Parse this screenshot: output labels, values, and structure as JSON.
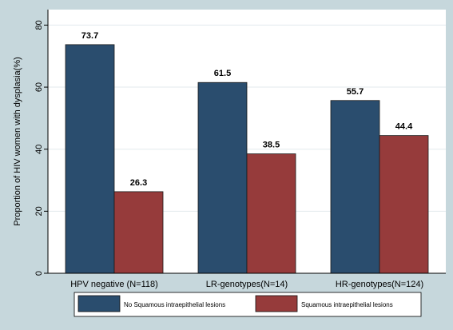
{
  "chart_data": {
    "type": "bar",
    "categories": [
      "HPV negative (N=118)",
      "LR-genotypes(N=14)",
      "HR-genotypes(N=124)"
    ],
    "series": [
      {
        "name": "No Squamous intraepithelial lesions",
        "values": [
          73.7,
          61.5,
          55.7
        ],
        "color": "#2a4d6e"
      },
      {
        "name": "Squamous intraepithelial lesions",
        "values": [
          26.3,
          38.5,
          44.4
        ],
        "color": "#963b3b"
      }
    ],
    "data_labels": [
      [
        "73.7",
        "61.5",
        "55.7"
      ],
      [
        "26.3",
        "38.5",
        "44.4"
      ]
    ],
    "ylabel": "Proportion of HIV women with dysplasia(%)",
    "xlabel": "",
    "yticks": [
      0,
      20,
      40,
      60,
      80
    ],
    "ylim": [
      0,
      85
    ],
    "grid": true,
    "legend_position": "bottom"
  },
  "colors": {
    "page_background": "#c6d7dc",
    "plot_background": "#ffffff",
    "grid": "#e3eaed",
    "axis": "#000000"
  }
}
